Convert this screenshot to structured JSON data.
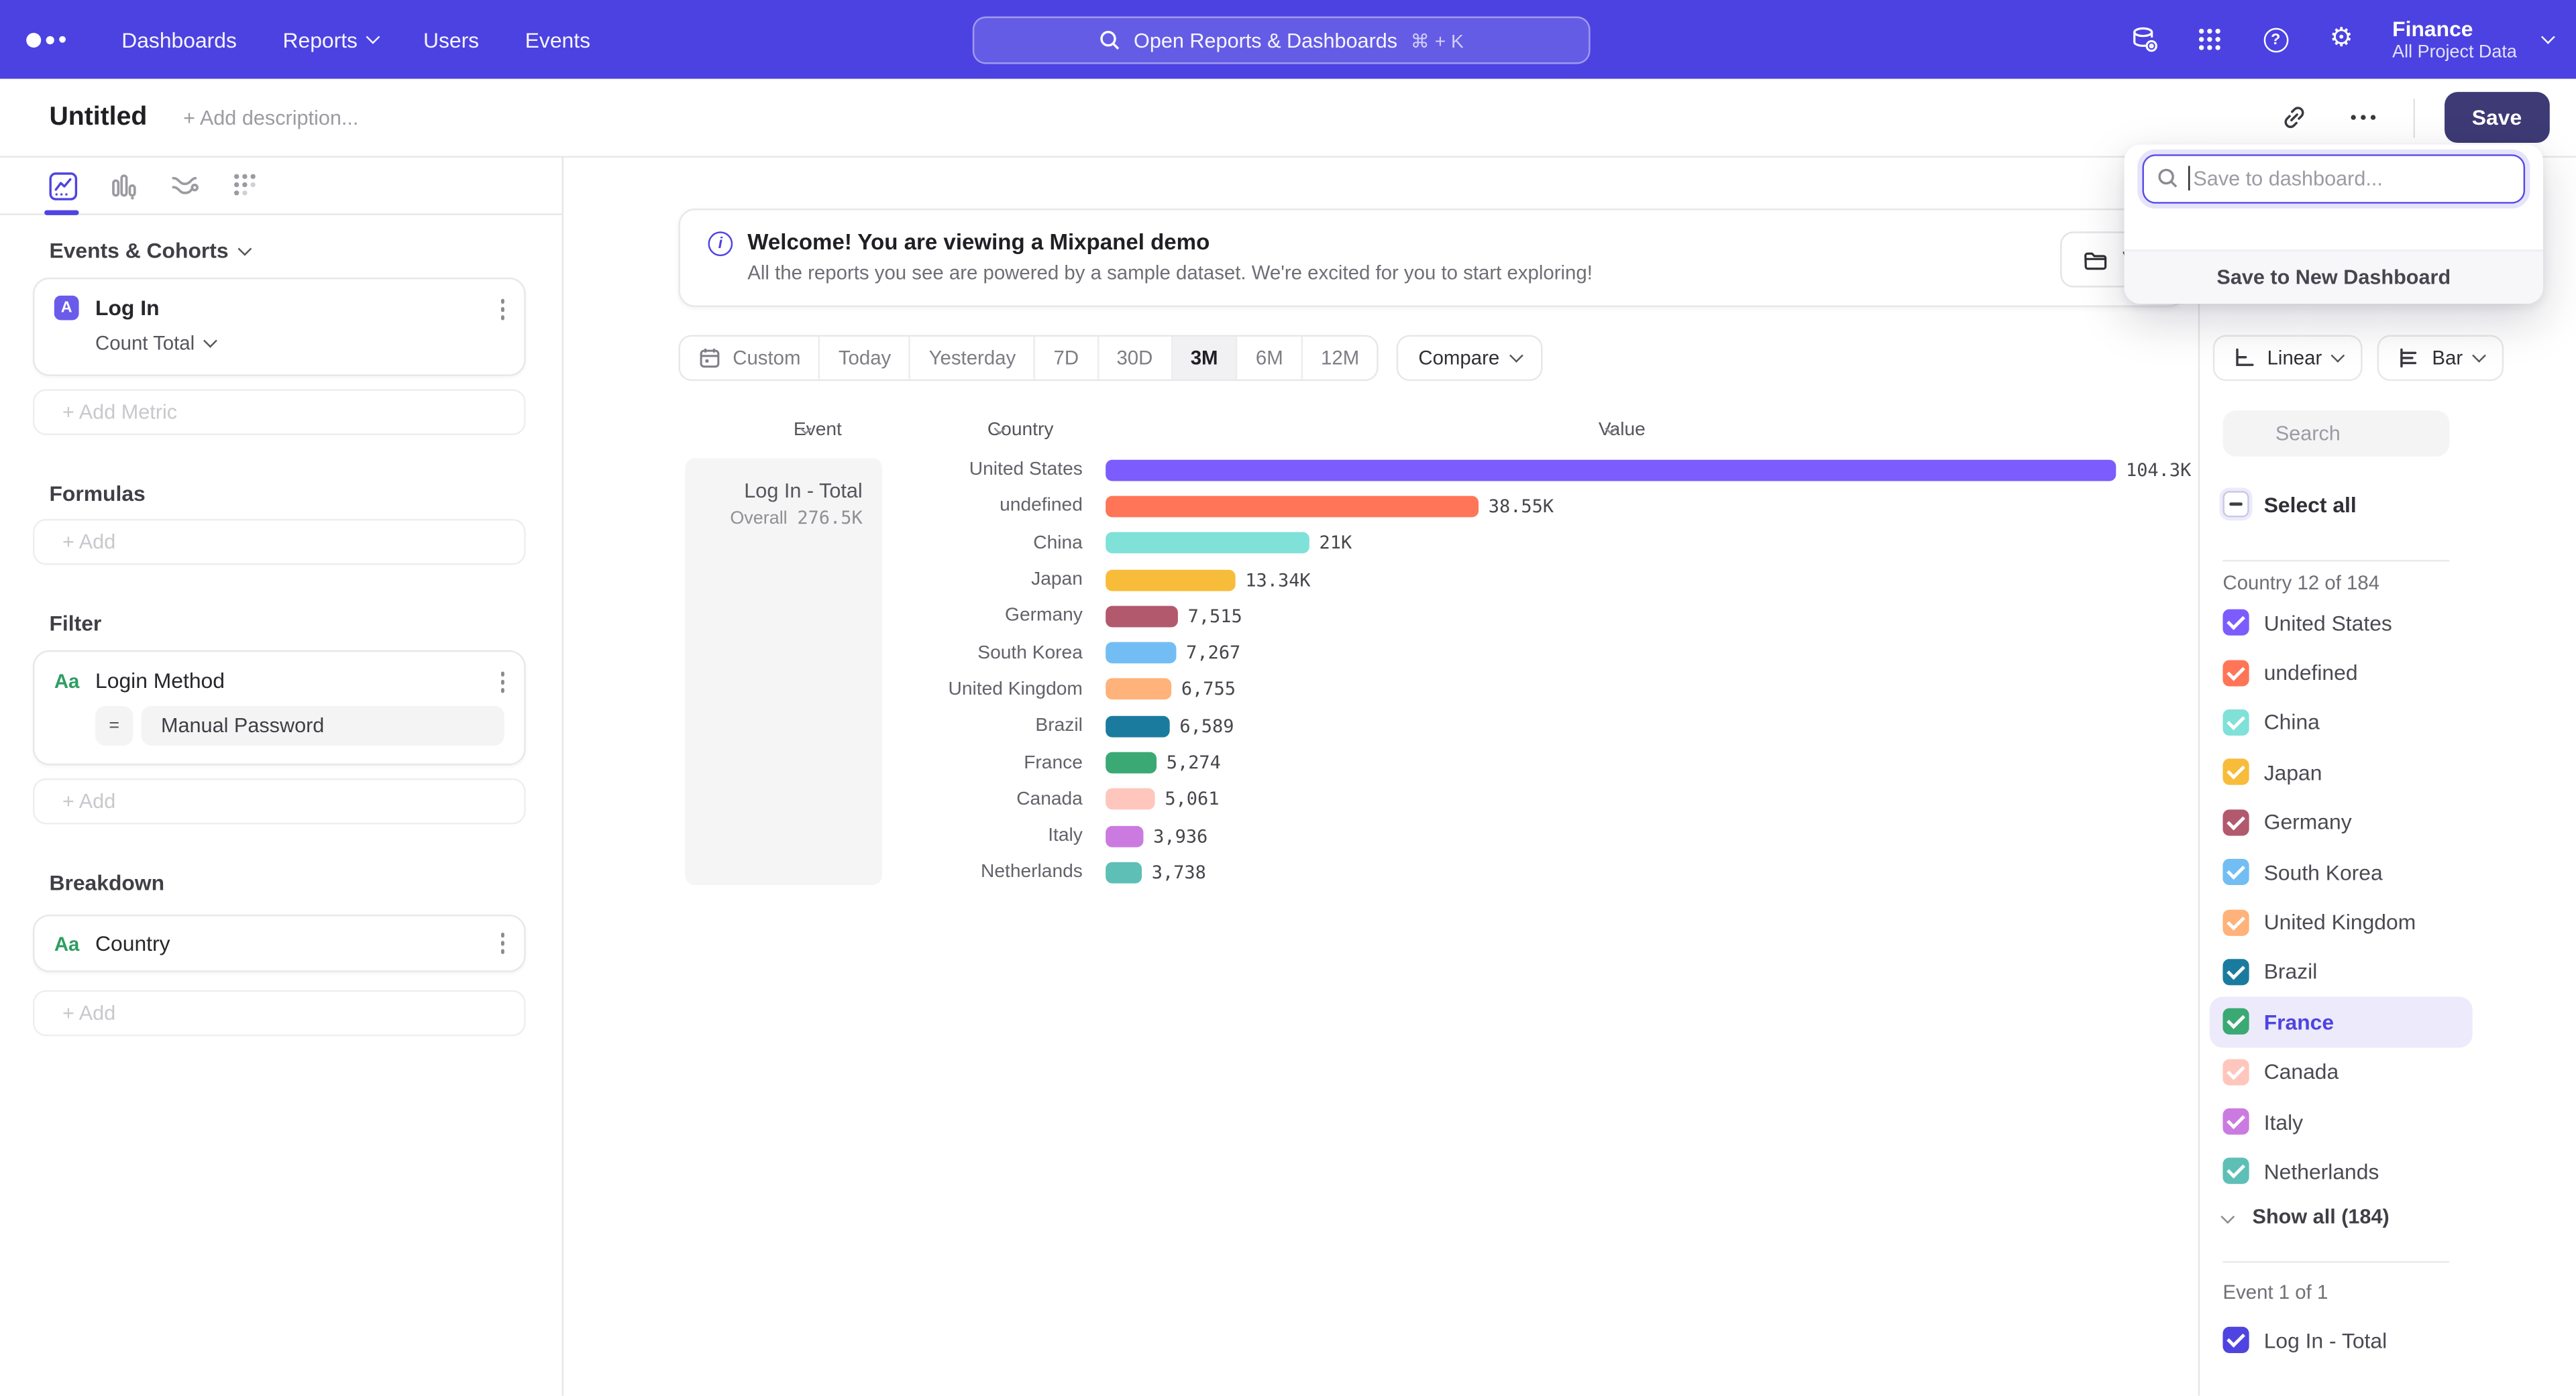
{
  "colors": {
    "accent": "#4f44e0",
    "nav_bg": "#4c42e1",
    "save_button_bg": "#3d3a75",
    "highlighted_row_bg": "#edeafb"
  },
  "nav": {
    "items": [
      {
        "label": "Dashboards",
        "chevron": false
      },
      {
        "label": "Reports",
        "chevron": true
      },
      {
        "label": "Users",
        "chevron": false
      },
      {
        "label": "Events",
        "chevron": false
      }
    ],
    "search": {
      "placeholder": "Open Reports & Dashboards",
      "shortcut": "⌘ + K"
    },
    "project": {
      "name": "Finance",
      "subtitle": "All Project Data"
    }
  },
  "report_header": {
    "title": "Untitled",
    "description_placeholder": "+ Add description...",
    "save_label": "Save"
  },
  "save_popup": {
    "search_placeholder": "Save to dashboard...",
    "footer_action": "Save to New Dashboard"
  },
  "banner": {
    "title": "Welcome! You are viewing a Mixpanel demo",
    "subtitle": "All the reports you see are powered by a sample dataset. We're excited for you to start exploring!",
    "view_button_visible_text": "V"
  },
  "builder": {
    "events_section_label": "Events & Cohorts",
    "metric": {
      "badge": "A",
      "name": "Log In",
      "aggregation": "Count Total"
    },
    "add_metric_label": "+ Add Metric",
    "formulas_label": "Formulas",
    "formulas_add_label": "+ Add",
    "filter_label": "Filter",
    "filter": {
      "type_badge": "Aa",
      "property": "Login Method",
      "operator": "=",
      "value": "Manual Password"
    },
    "filter_add_label": "+ Add",
    "breakdown_label": "Breakdown",
    "breakdown": {
      "type_badge": "Aa",
      "property": "Country"
    },
    "breakdown_add_label": "+ Add"
  },
  "toolbar": {
    "date_ranges": [
      "Custom",
      "Today",
      "Yesterday",
      "7D",
      "30D",
      "3M",
      "6M",
      "12M"
    ],
    "selected_range": "3M",
    "compare_label": "Compare",
    "scale_label": "Linear",
    "chart_type_label": "Bar"
  },
  "chart": {
    "columns": [
      "Event",
      "Country",
      "Value"
    ],
    "group_name": "Log In - Total",
    "overall_label": "Overall",
    "overall_value": "276.5K"
  },
  "chart_data": {
    "type": "bar",
    "orientation": "horizontal",
    "series_name": "Log In - Total",
    "categories": [
      "United States",
      "undefined",
      "China",
      "Japan",
      "Germany",
      "South Korea",
      "United Kingdom",
      "Brazil",
      "France",
      "Canada",
      "Italy",
      "Netherlands"
    ],
    "values": [
      104300,
      38550,
      21000,
      13340,
      7515,
      7267,
      6755,
      6589,
      5274,
      5061,
      3936,
      3738
    ],
    "value_labels": [
      "104.3K",
      "38.55K",
      "21K",
      "13.34K",
      "7,515",
      "7,267",
      "6,755",
      "6,589",
      "5,274",
      "5,061",
      "3,936",
      "3,738"
    ],
    "colors": [
      "#7c5cfc",
      "#ff7557",
      "#80e1d9",
      "#f8bc3b",
      "#b2596e",
      "#72bef4",
      "#ffb27a",
      "#1a7b9e",
      "#3ba974",
      "#ffc6be",
      "#cb7be0",
      "#5ebfb6"
    ],
    "overall_total": 276500,
    "xlim": [
      0,
      104300
    ],
    "grid": false,
    "legend_position": "right-panel"
  },
  "legend": {
    "search_placeholder": "Search",
    "select_all_label": "Select all",
    "country_header": "Country 12 of 184",
    "countries": [
      {
        "label": "United States",
        "color": "#7c5cfc",
        "checked": true,
        "highlighted": false
      },
      {
        "label": "undefined",
        "color": "#ff7557",
        "checked": true,
        "highlighted": false
      },
      {
        "label": "China",
        "color": "#80e1d9",
        "checked": true,
        "highlighted": false
      },
      {
        "label": "Japan",
        "color": "#f8bc3b",
        "checked": true,
        "highlighted": false
      },
      {
        "label": "Germany",
        "color": "#b2596e",
        "checked": true,
        "highlighted": false
      },
      {
        "label": "South Korea",
        "color": "#72bef4",
        "checked": true,
        "highlighted": false
      },
      {
        "label": "United Kingdom",
        "color": "#ffb27a",
        "checked": true,
        "highlighted": false
      },
      {
        "label": "Brazil",
        "color": "#1a7b9e",
        "checked": true,
        "highlighted": false
      },
      {
        "label": "France",
        "color": "#3ba974",
        "checked": true,
        "highlighted": true
      },
      {
        "label": "Canada",
        "color": "#ffc6be",
        "checked": true,
        "highlighted": false
      },
      {
        "label": "Italy",
        "color": "#cb7be0",
        "checked": true,
        "highlighted": false
      },
      {
        "label": "Netherlands",
        "color": "#5ebfb6",
        "checked": true,
        "highlighted": false
      }
    ],
    "show_all_label": "Show all (184)",
    "event_header": "Event 1 of 1",
    "events": [
      {
        "label": "Log In - Total",
        "color": "#4f44e0",
        "checked": true
      }
    ]
  }
}
